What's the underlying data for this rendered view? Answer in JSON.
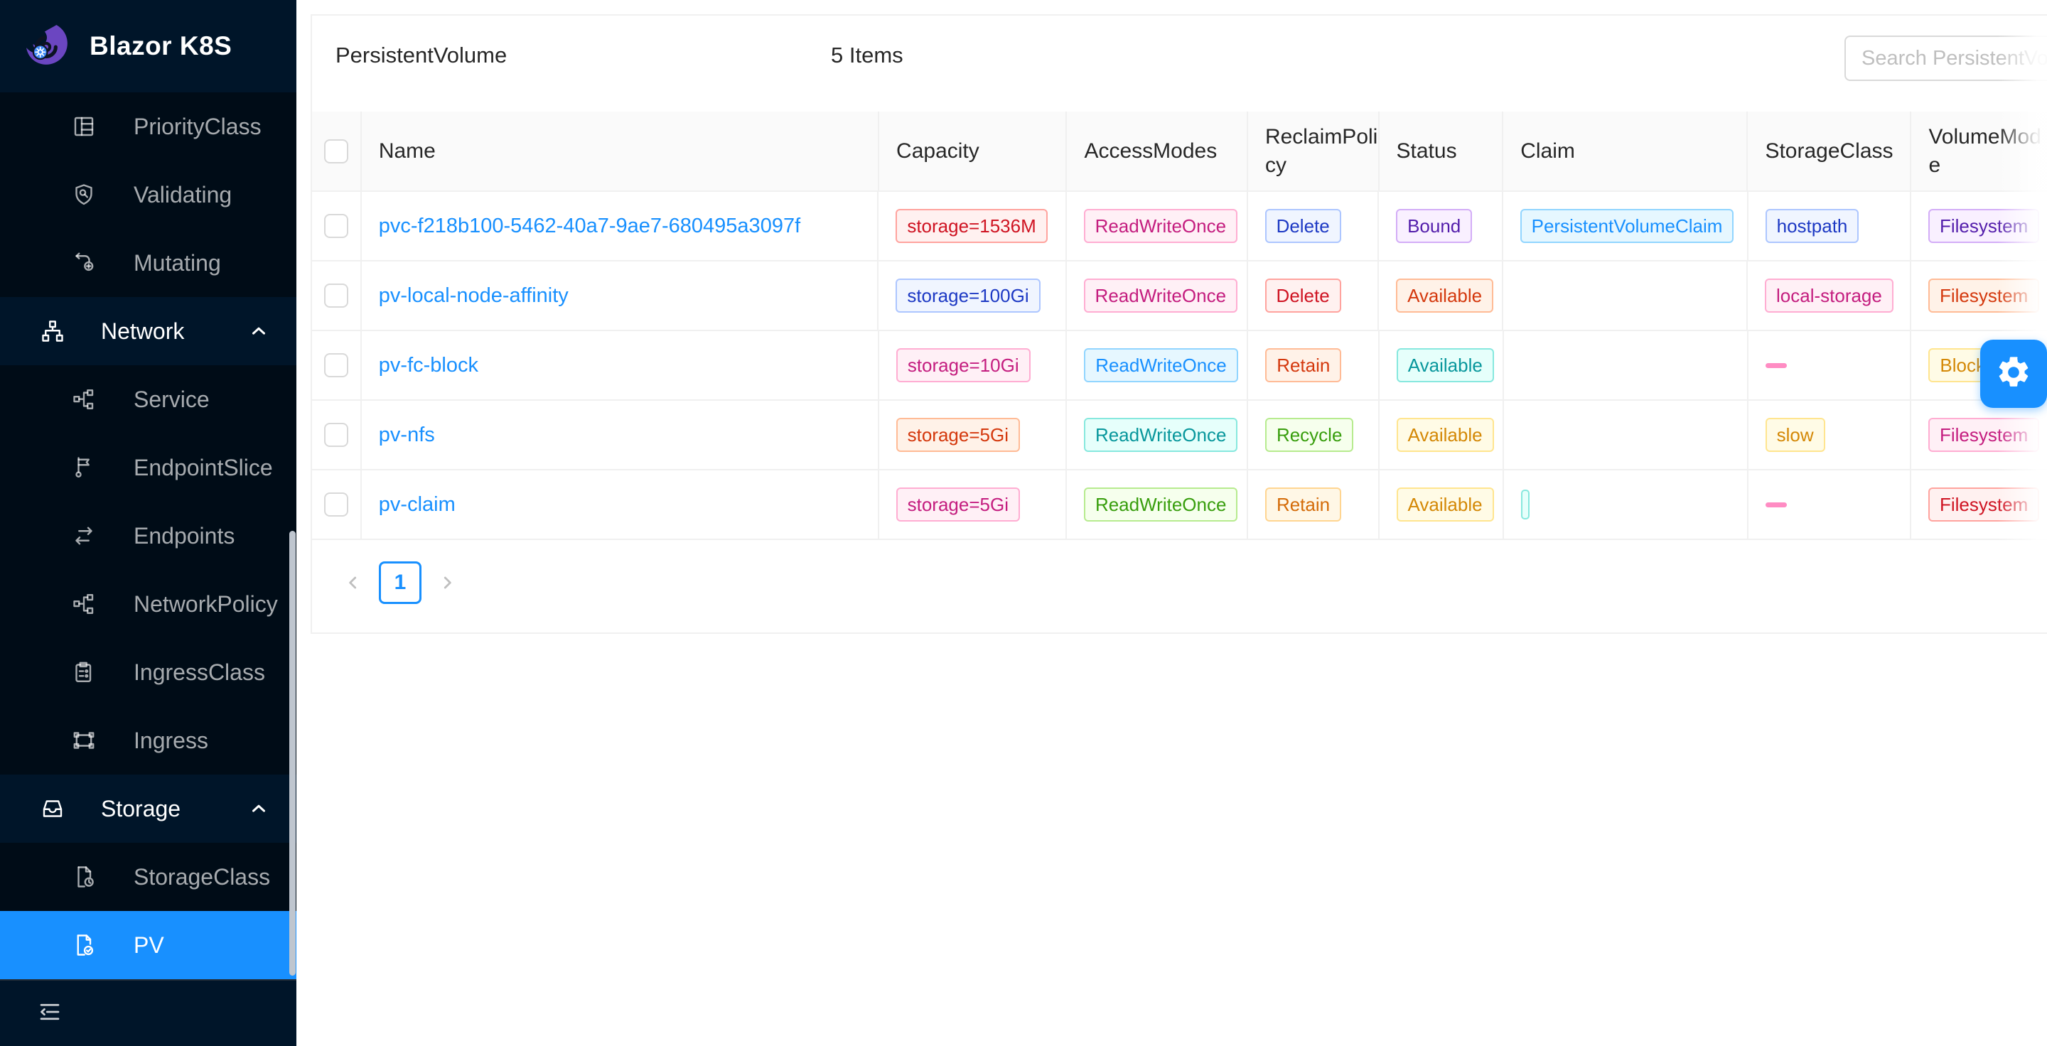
{
  "app": {
    "title": "Blazor K8S"
  },
  "sidebar": {
    "items": [
      {
        "label": "PriorityClass",
        "icon": "priority-class-icon",
        "type": "sub"
      },
      {
        "label": "Validating",
        "icon": "validating-icon",
        "type": "sub"
      },
      {
        "label": "Mutating",
        "icon": "mutating-icon",
        "type": "sub"
      },
      {
        "label": "Network",
        "icon": "network-icon",
        "type": "group",
        "expanded": true
      },
      {
        "label": "Service",
        "icon": "service-icon",
        "type": "sub"
      },
      {
        "label": "EndpointSlice",
        "icon": "endpointslice-icon",
        "type": "sub"
      },
      {
        "label": "Endpoints",
        "icon": "endpoints-icon",
        "type": "sub"
      },
      {
        "label": "NetworkPolicy",
        "icon": "networkpolicy-icon",
        "type": "sub"
      },
      {
        "label": "IngressClass",
        "icon": "ingressclass-icon",
        "type": "sub"
      },
      {
        "label": "Ingress",
        "icon": "ingress-icon",
        "type": "sub"
      },
      {
        "label": "Storage",
        "icon": "storage-icon",
        "type": "group",
        "expanded": true
      },
      {
        "label": "StorageClass",
        "icon": "storageclass-icon",
        "type": "sub"
      },
      {
        "label": "PV",
        "icon": "pv-icon",
        "type": "sub",
        "selected": true
      }
    ]
  },
  "header": {
    "title": "PersistentVolume",
    "items_count": "5 Items",
    "search_placeholder": "Search PersistentVolume"
  },
  "table": {
    "columns": [
      "Name",
      "Capacity",
      "AccessModes",
      "ReclaimPolicy",
      "Status",
      "Claim",
      "StorageClass",
      "VolumeMode"
    ],
    "rows": [
      {
        "name": "pvc-f218b100-5462-40a7-9ae7-680495a3097f",
        "capacity": {
          "text": "storage=1536M",
          "color": "red"
        },
        "access": {
          "text": "ReadWriteOnce",
          "color": "magenta"
        },
        "reclaim": {
          "text": "Delete",
          "color": "geekblue"
        },
        "status": {
          "text": "Bound",
          "color": "purple"
        },
        "claim": {
          "text": "PersistentVolumeClaim",
          "color": "blue"
        },
        "storage_class": {
          "text": "hostpath",
          "color": "geekblue"
        },
        "volume_mode": {
          "text": "Filesystem",
          "color": "purple"
        }
      },
      {
        "name": "pv-local-node-affinity",
        "capacity": {
          "text": "storage=100Gi",
          "color": "geekblue"
        },
        "access": {
          "text": "ReadWriteOnce",
          "color": "magenta"
        },
        "reclaim": {
          "text": "Delete",
          "color": "red"
        },
        "status": {
          "text": "Available",
          "color": "volcano"
        },
        "claim": null,
        "storage_class": {
          "text": "local-storage",
          "color": "magenta"
        },
        "volume_mode": {
          "text": "Filesystem",
          "color": "volcano"
        }
      },
      {
        "name": "pv-fc-block",
        "capacity": {
          "text": "storage=10Gi",
          "color": "magenta"
        },
        "access": {
          "text": "ReadWriteOnce",
          "color": "blue"
        },
        "reclaim": {
          "text": "Retain",
          "color": "volcano"
        },
        "status": {
          "text": "Available",
          "color": "cyan"
        },
        "claim": null,
        "storage_class": {
          "type": "dash"
        },
        "volume_mode": {
          "text": "Block",
          "color": "gold"
        }
      },
      {
        "name": "pv-nfs",
        "capacity": {
          "text": "storage=5Gi",
          "color": "volcano"
        },
        "access": {
          "text": "ReadWriteOnce",
          "color": "cyan"
        },
        "reclaim": {
          "text": "Recycle",
          "color": "green"
        },
        "status": {
          "text": "Available",
          "color": "gold"
        },
        "claim": null,
        "storage_class": {
          "text": "slow",
          "color": "gold"
        },
        "volume_mode": {
          "text": "Filesystem",
          "color": "magenta"
        }
      },
      {
        "name": "pv-claim",
        "capacity": {
          "text": "storage=5Gi",
          "color": "magenta"
        },
        "access": {
          "text": "ReadWriteOnce",
          "color": "green"
        },
        "reclaim": {
          "text": "Retain",
          "color": "orange"
        },
        "status": {
          "text": "Available",
          "color": "gold"
        },
        "claim": {
          "type": "empty",
          "color": "cyan"
        },
        "storage_class": {
          "type": "dash"
        },
        "volume_mode": {
          "text": "Filesystem",
          "color": "red"
        }
      }
    ]
  },
  "pagination": {
    "current_page": "1"
  },
  "colors": {
    "accent": "#1890ff",
    "link": "#1890ff",
    "sidebar_selected": "#1890ff",
    "dash": "#ff8cc3",
    "tags": {
      "red": {
        "text": "#cf1322",
        "bg": "#fff1f0",
        "border": "#ffa39e"
      },
      "volcano": {
        "text": "#d4380d",
        "bg": "#fff2e8",
        "border": "#ffbb96"
      },
      "orange": {
        "text": "#d46b08",
        "bg": "#fff7e6",
        "border": "#ffd591"
      },
      "gold": {
        "text": "#d48806",
        "bg": "#fffbe6",
        "border": "#ffe58f"
      },
      "green": {
        "text": "#389e0d",
        "bg": "#f6ffed",
        "border": "#b7eb8f"
      },
      "cyan": {
        "text": "#08979c",
        "bg": "#e6fffb",
        "border": "#87e8de"
      },
      "blue": {
        "text": "#1890ff",
        "bg": "#e6f7ff",
        "border": "#91d5ff"
      },
      "geekblue": {
        "text": "#1d39c4",
        "bg": "#f0f5ff",
        "border": "#adc6ff"
      },
      "purple": {
        "text": "#531dab",
        "bg": "#f9f0ff",
        "border": "#d3adf7"
      },
      "magenta": {
        "text": "#c41d7f",
        "bg": "#fff0f6",
        "border": "#ffadd2"
      }
    }
  }
}
